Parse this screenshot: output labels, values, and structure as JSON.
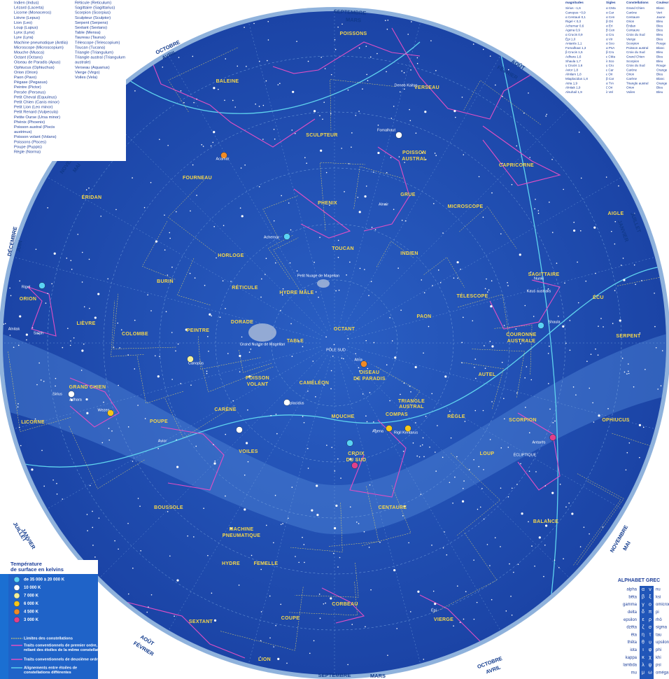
{
  "constellation_list": {
    "column_1": [
      "Indien (Indus)",
      "Lézard (Lacerta)",
      "Licorne (Monoceros)",
      "Lièvre (Lepus)",
      "Lion (Leo)",
      "Loup (Lupus)",
      "Lynx (Lynx)",
      "Lyre (Lyra)",
      "Machine pneumatique (Antlia)",
      "Microscope (Microscopium)",
      "Mouche (Musca)",
      "Octant (Octans)",
      "Oiseau de Paradis (Apus)",
      "Ophiucus (Ophiuchus)",
      "Orion (Orion)",
      "Paon (Pavo)",
      "Pégase (Pegasus)",
      "Peintre (Pictor)",
      "Persée (Perseus)",
      "Petit Cheval (Equuleus)",
      "Petit Chien (Canis minor)",
      "Petit Lion (Leo minor)",
      "Petit Renard (Vulpecula)",
      "Petite Ourse (Ursa minor)",
      "Phénix (Phoenix)",
      "Poisson austral (Piscis",
      "austrinus)",
      "Poisson volant (Volans)",
      "Poissons (Pisces)",
      "Poupe (Puppis)",
      "Règle (Norma)"
    ],
    "column_2": [
      "Réticule (Reticulum)",
      "Sagittaire (Sagittarius)",
      "Scorpion (Scorpius)",
      "Sculpteur (Sculptor)",
      "Serpent (Serpens)",
      "Sextant (Sextans)",
      "Table (Mensa)",
      "Taureau (Taurus)",
      "Télescope (Telescopium)",
      "Toucan (Tucana)",
      "Triangle (Triangulum)",
      "Triangle austral (Triangulum",
      "australe)",
      "Verseau (Aquarius)",
      "Vierge (Virgo)",
      "Voiles (Vela)"
    ]
  },
  "star_table": {
    "headers": [
      "magnitudes",
      "Sigles",
      "Constellations",
      "Couleur"
    ],
    "rows": [
      [
        "Sirius −1,6",
        "α CMa",
        "Grand Chien",
        "Blanc"
      ],
      [
        "Canopus −0,9",
        "α Car",
        "Carène",
        "Vert"
      ],
      [
        "α Centauri 0,1",
        "α Cen",
        "Centaure",
        "Jaune"
      ],
      [
        "Rigel < 0,3",
        "β Ori",
        "Orion",
        "Bleu"
      ],
      [
        "Achernar 0,6",
        "α Eri",
        "Éridan",
        "Bleu"
      ],
      [
        "Agena 0,9",
        "β Cen",
        "Centaure",
        "Bleu"
      ],
      [
        "α Crucis 0,9",
        "α Cru",
        "Croix du Sud",
        "Bleu"
      ],
      [
        "Épi 1,0",
        "α Vir",
        "Vierge",
        "Bleu"
      ],
      [
        "Antarès 1,1",
        "α Sco",
        "Scorpion",
        "Rouge"
      ],
      [
        "Fomalhaut 1,3",
        "α PsA",
        "Poisson austral",
        "Blanc"
      ],
      [
        "β Crucis 1,5",
        "β Cru",
        "Croix du Sud",
        "Bleu"
      ],
      [
        "Adhara 1,6",
        "ε CMa",
        "Grand Chien",
        "Bleu"
      ],
      [
        "Shaula 1,7",
        "λ Sco",
        "Scorpion",
        "Bleu"
      ],
      [
        "γ Crucis 1,6",
        "γ Cru",
        "Croix du Sud",
        "Rouge"
      ],
      [
        "Avior 1,8",
        "ε Car",
        "Carène",
        "Orange"
      ],
      [
        "Alnilam 1,8",
        "ε Ori",
        "Orion",
        "Bleu"
      ],
      [
        "Miaplacidus 1,8",
        "β Car",
        "Carène",
        "Blanc"
      ],
      [
        "Atria 1,9",
        "α TrA",
        "Triangle austral",
        "Orange"
      ],
      [
        "Alnitak 1,9",
        "ζ Ori",
        "Orion",
        "Bleu"
      ],
      [
        "Alsuhail 1,9",
        "λ Vel",
        "Voiles",
        "Bleu"
      ]
    ]
  },
  "map": {
    "constellations": [
      "POISSONS",
      "BALEINE",
      "VERSEAU",
      "SCULPTEUR",
      "POISSON",
      "AUSTRAL",
      "CAPRICORNE",
      "FOURNEAU",
      "PHENIX",
      "GRUE",
      "ÉRIDAN",
      "MICROSCOPE",
      "AIGLE",
      "TOUCAN",
      "INDIEN",
      "HORLOGE",
      "SAGITTAIRE",
      "BURIN",
      "RÉTICULE",
      "HYDRE MÂLE",
      "ORION",
      "TÉLESCOPE",
      "ÉCU",
      "LIÈVRE",
      "PEINTRE",
      "DORADE",
      "OCTANT",
      "PAON",
      "COLOMBE",
      "TABLE",
      "COURONNE",
      "AUSTRALE",
      "SERPENT",
      "POISSON",
      "VOLANT",
      "CAMÉLÉON",
      "OISEAU",
      "DE PARADIS",
      "AUTEL",
      "GRAND CHIEN",
      "CARÈNE",
      "TRIANGLE",
      "AUSTRAL",
      "COMPAS",
      "RÈGLE",
      "MOUCHE",
      "SCORPION",
      "LICORNE",
      "OPHIUCUS",
      "POUPE",
      "VOILES",
      "CROIX",
      "DU SUD",
      "LOUP",
      "CENTAURE",
      "BOUSSOLE",
      "BALANCE",
      "MACHINE",
      "PNEUMATIQUE",
      "HYDRE",
      "FEMELLE",
      "CORBEAU",
      "COUPE",
      "VIERGE",
      "SEXTANT",
      "LION"
    ],
    "stars": [
      "Fomalhaut",
      "Achernar",
      "Canopus",
      "Sirius",
      "Rigel",
      "Antarès",
      "Shaula",
      "Miaplacidus",
      "Agena",
      "Rigil Kentarus",
      "Atria",
      "Acamar",
      "Adhara",
      "Wezen",
      "Alnair",
      "Deneb Kaitos",
      "Épi",
      "Nunki",
      "Kaus australis",
      "Avior",
      "Alnitak",
      "Saïph",
      "Grand Nuage de Magellan",
      "Petit Nuage de Magellan",
      "PÔLE SUD",
      "ÉQUATEUR",
      "ÉCLIPTIQUE"
    ],
    "months": [
      "SEPTEMBRE",
      "MARS",
      "OCTOBRE",
      "AVRIL",
      "AOÛT",
      "FÉVRIER",
      "NOVEMBRE",
      "MAI",
      "DÉCEMBRE",
      "JUIN",
      "JANVIER",
      "JUILLET",
      "NOVEMBRE",
      "MAI",
      "JUILLET",
      "JANVIER",
      "AOÛT",
      "FÉVRIER",
      "OCTOBRE",
      "AVRIL",
      "SEPTEMBRE",
      "MARS"
    ]
  },
  "legend": {
    "title": "Température",
    "subtitle": "de surface en kelvins",
    "temperatures": [
      {
        "label": "de 35 000 à 20 000 K",
        "color": "#5ad2f4"
      },
      {
        "label": "10 000 K",
        "color": "#ffffff"
      },
      {
        "label": "7 000 K",
        "color": "#f3ef9a"
      },
      {
        "label": "6 000 K",
        "color": "#f5c518"
      },
      {
        "label": "4 500 K",
        "color": "#f08a24"
      },
      {
        "label": "3 000 K",
        "color": "#e0408a"
      }
    ],
    "lines": [
      [
        "Limites des constellations"
      ],
      [
        "Traits conventionnels de premier ordre,",
        "reliant des étoiles de la même constellation"
      ],
      [
        "Traits conventionnels de deuxième ordre"
      ],
      [
        "Alignements entre étoiles de",
        "constellations différentes"
      ]
    ]
  },
  "greek": {
    "title": "ALPHABET GREC",
    "rows": [
      [
        "alpha",
        "α",
        "ν",
        "nu"
      ],
      [
        "bêta",
        "β",
        "ξ",
        "ksi"
      ],
      [
        "gamma",
        "γ",
        "ο",
        "omicron"
      ],
      [
        "delta",
        "δ",
        "π",
        "pi"
      ],
      [
        "epsilon",
        "ε",
        "ρ",
        "rhô"
      ],
      [
        "dzêta",
        "ζ",
        "σ",
        "sigma"
      ],
      [
        "êta",
        "η",
        "τ",
        "tau"
      ],
      [
        "thêta",
        "θ",
        "υ",
        "upsilon"
      ],
      [
        "iota",
        "ι",
        "φ",
        "phi"
      ],
      [
        "kappa",
        "κ",
        "χ",
        "khi"
      ],
      [
        "lambda",
        "λ",
        "ψ",
        "psi"
      ],
      [
        "mu",
        "μ",
        "ω",
        "oméga"
      ]
    ]
  }
}
